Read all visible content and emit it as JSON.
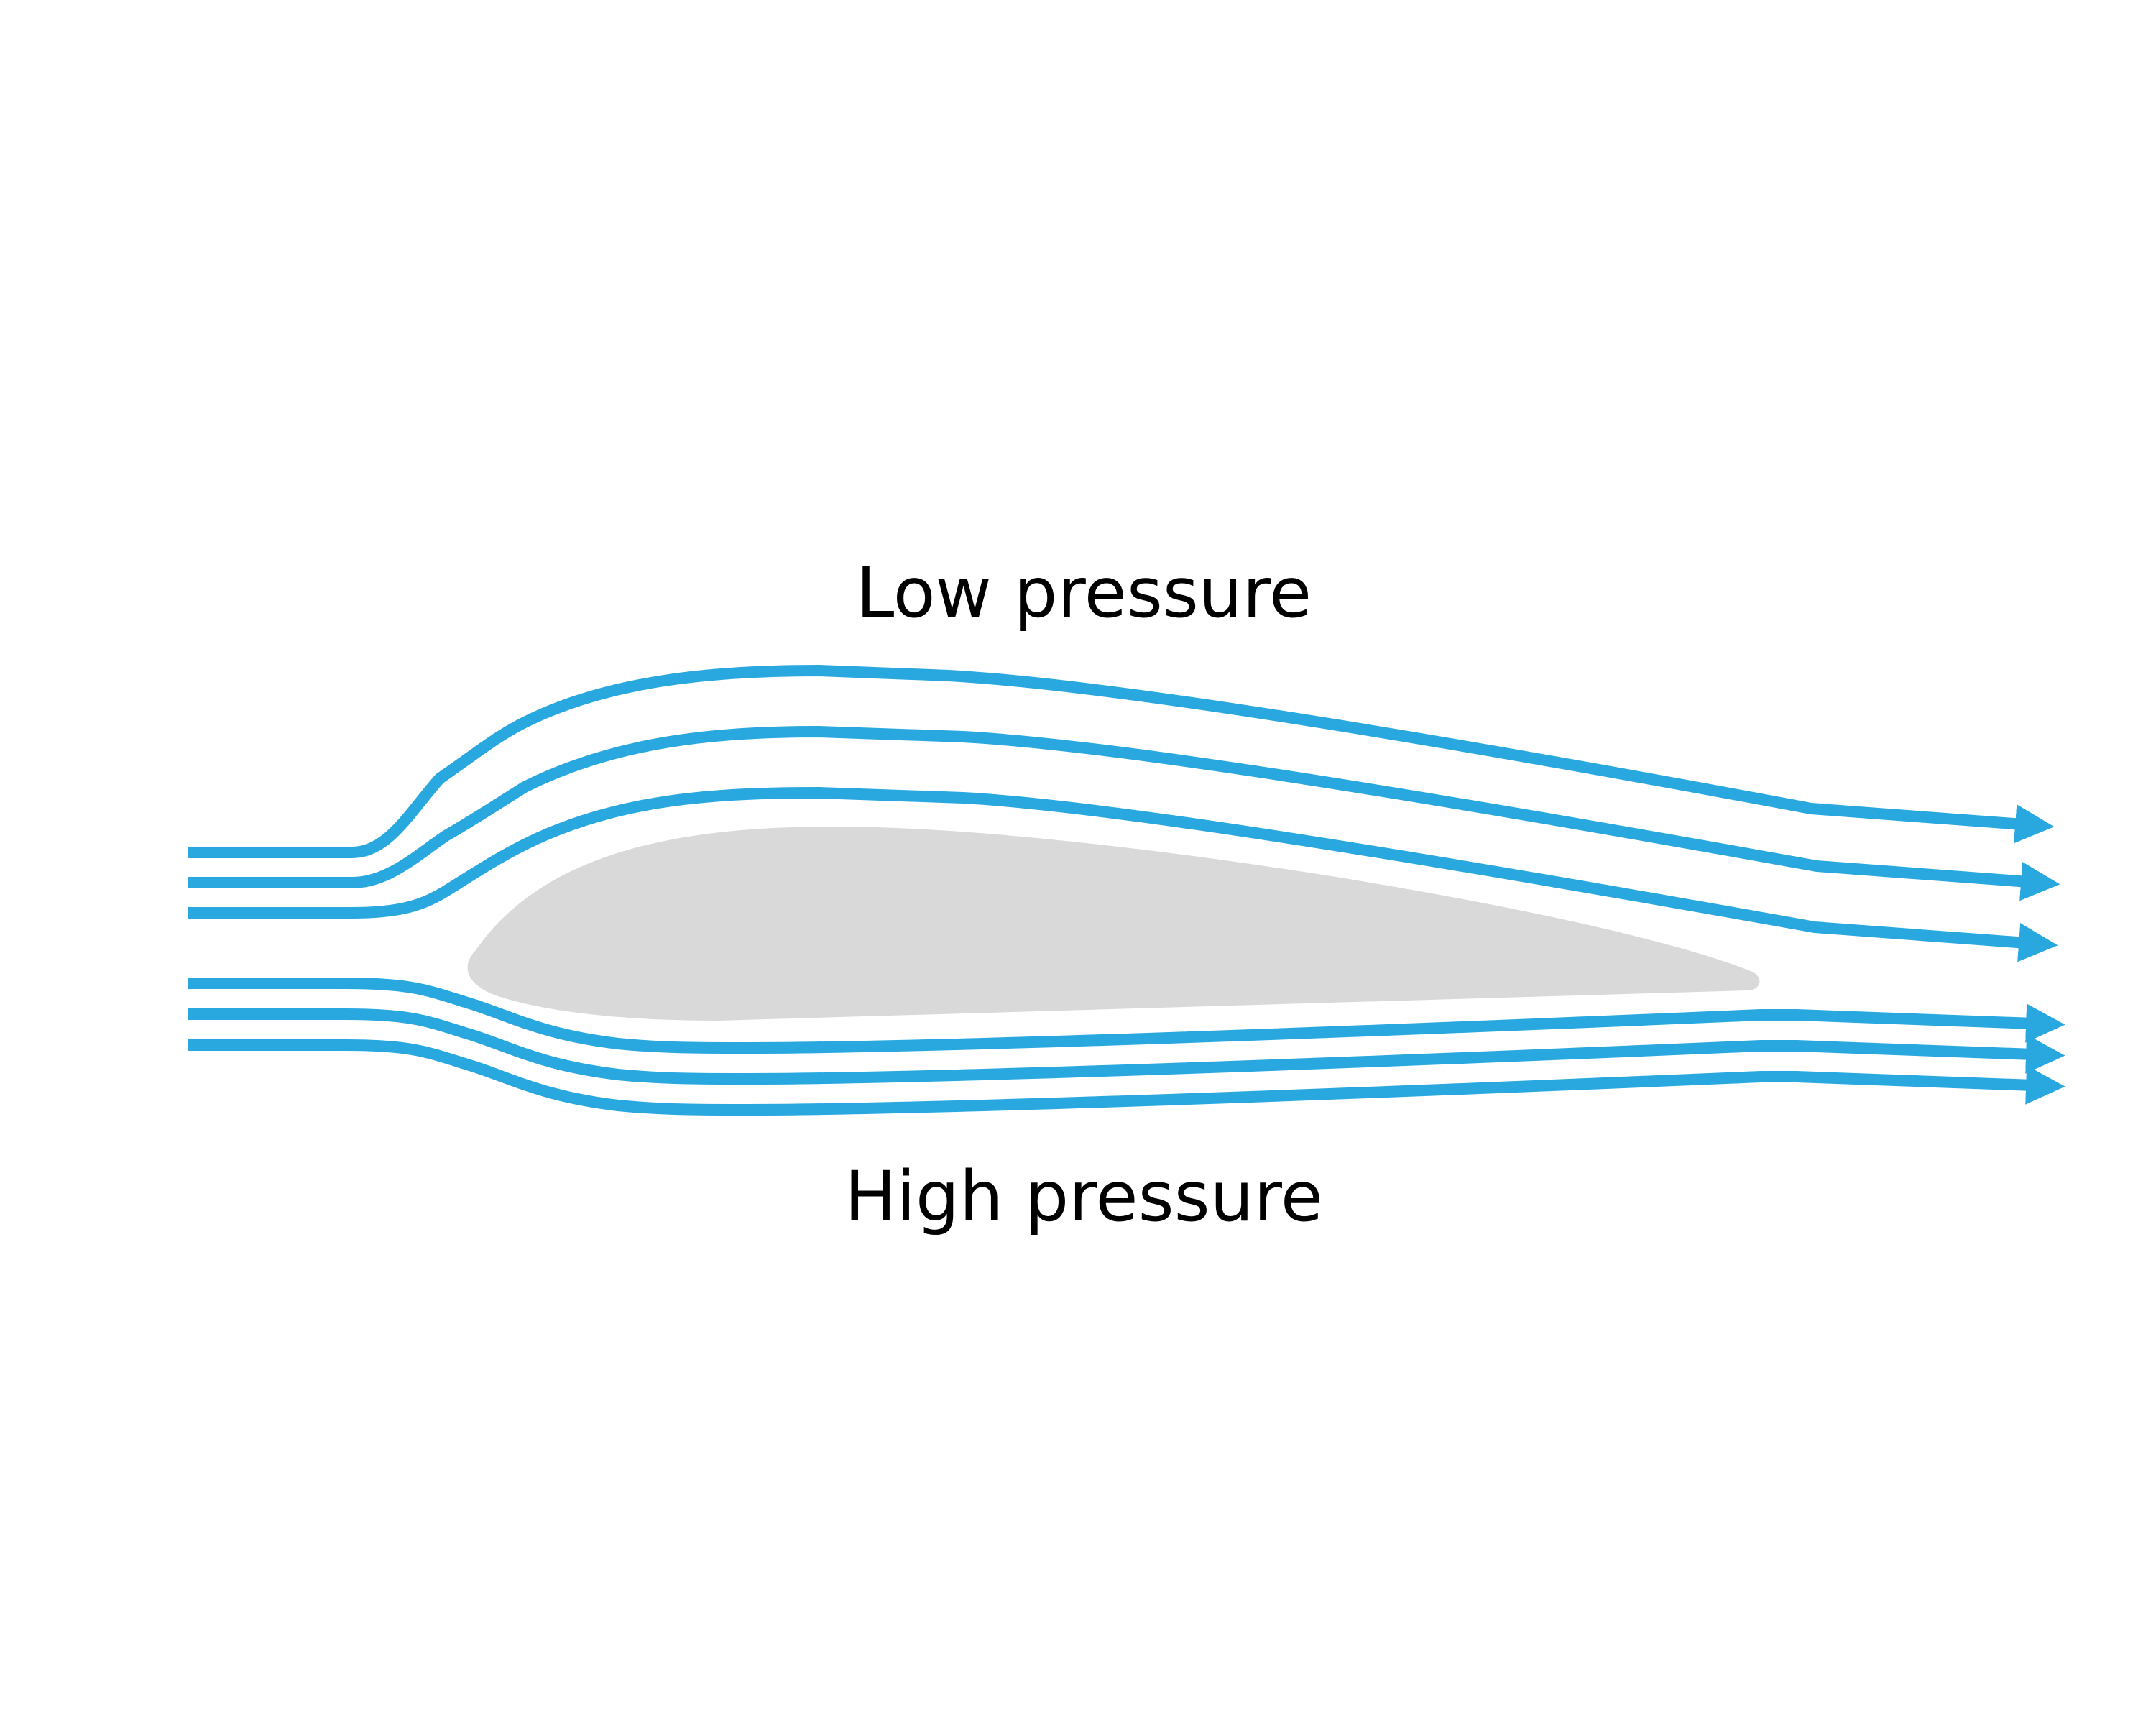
{
  "labels": {
    "top": "Low pressure",
    "bottom": "High pressure"
  },
  "colors": {
    "streamline": "#29a8e0",
    "airfoil": "#d9d9d9",
    "text": "#000000",
    "background": "#ffffff"
  }
}
